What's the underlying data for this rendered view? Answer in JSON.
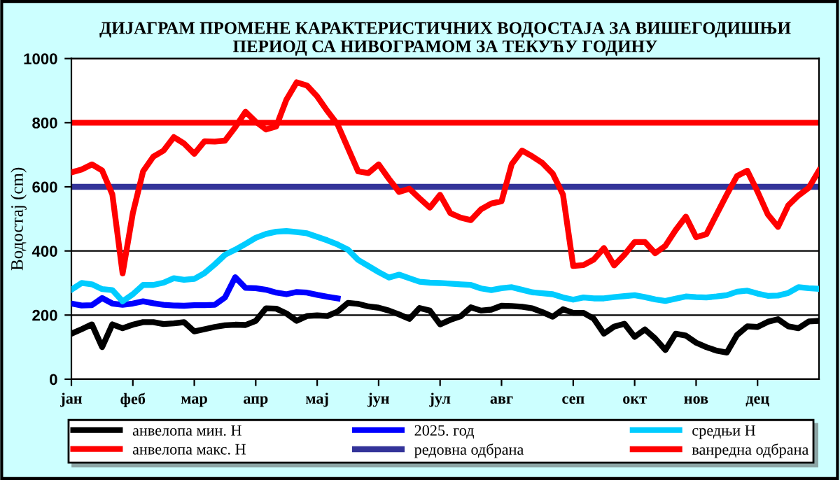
{
  "chart_data": {
    "type": "line",
    "title": "ДИЈАГРАМ ПРОМЕНЕ КАРАКТЕРИСТИЧНИХ ВОДОСТАЈА ЗА ВИШЕГОДИШЊИ\nПЕРИОД СА НИВОГРАМОМ ЗА ТЕКУЋУ ГОДИНУ",
    "ylabel": "Водостај (cm)",
    "categories": [
      "јан",
      null,
      null,
      null,
      null,
      null,
      "феб",
      null,
      null,
      null,
      null,
      null,
      "мар",
      null,
      null,
      null,
      null,
      null,
      "апр",
      null,
      null,
      null,
      null,
      null,
      "мај",
      null,
      null,
      null,
      null,
      null,
      "јун",
      null,
      null,
      null,
      null,
      null,
      "јул",
      null,
      null,
      null,
      null,
      null,
      "авг",
      null,
      null,
      null,
      null,
      null,
      null,
      "сеп",
      null,
      null,
      null,
      null,
      null,
      "окт",
      null,
      null,
      null,
      null,
      null,
      "нов",
      null,
      null,
      null,
      null,
      null,
      "дец",
      null,
      null,
      null,
      null,
      null,
      null
    ],
    "ylim": [
      0,
      1000
    ],
    "yticks": [
      0,
      200,
      400,
      600,
      800,
      1000
    ],
    "grid": "y",
    "legend": "bottom",
    "marker": "none",
    "line_style": "solid",
    "series": [
      {
        "name": "анвелопа мин. Н",
        "color": "#000000",
        "values": [
          142,
          156,
          171,
          100,
          171,
          159,
          170,
          178,
          178,
          172,
          174,
          178,
          149,
          156,
          163,
          168,
          170,
          169,
          182,
          221,
          220,
          205,
          182,
          197,
          199,
          197,
          211,
          238,
          235,
          227,
          223,
          214,
          202,
          188,
          222,
          214,
          171,
          185,
          196,
          224,
          214,
          217,
          229,
          228,
          226,
          221,
          209,
          195,
          218,
          207,
          207,
          189,
          142,
          164,
          173,
          132,
          155,
          127,
          91,
          142,
          136,
          114,
          100,
          89,
          83,
          138,
          165,
          163,
          179,
          187,
          165,
          159,
          180,
          182
        ]
      },
      {
        "name": "2025. год",
        "color": "#0000ff",
        "values": [
          236,
          230,
          231,
          253,
          236,
          232,
          236,
          243,
          237,
          232,
          230,
          229,
          231,
          231,
          232,
          255,
          318,
          285,
          284,
          279,
          270,
          265,
          272,
          270,
          263,
          257,
          252,
          null,
          null,
          null,
          null,
          null,
          null,
          null,
          null,
          null,
          null,
          null,
          null,
          null,
          null,
          null,
          null,
          null,
          null,
          null,
          null,
          null,
          null,
          null,
          null,
          null,
          null,
          null,
          null,
          null,
          null,
          null,
          null,
          null,
          null,
          null,
          null,
          null,
          null,
          null,
          null,
          null,
          null,
          null,
          null,
          null,
          null,
          null
        ]
      },
      {
        "name": "средњи Н",
        "color": "#00ccff",
        "values": [
          279,
          300,
          296,
          281,
          278,
          243,
          265,
          294,
          294,
          301,
          315,
          310,
          313,
          331,
          358,
          388,
          404,
          422,
          441,
          453,
          460,
          462,
          459,
          455,
          444,
          433,
          420,
          404,
          372,
          353,
          334,
          317,
          326,
          315,
          304,
          301,
          300,
          298,
          296,
          294,
          283,
          278,
          284,
          287,
          279,
          271,
          268,
          265,
          255,
          248,
          255,
          252,
          252,
          256,
          259,
          262,
          256,
          249,
          244,
          251,
          258,
          256,
          255,
          258,
          262,
          273,
          276,
          267,
          260,
          261,
          269,
          287,
          284,
          282
        ]
      },
      {
        "name": "анвелопа макс. Н",
        "color": "#ff0000",
        "values": [
          645,
          654,
          670,
          651,
          576,
          330,
          518,
          648,
          694,
          713,
          755,
          735,
          703,
          742,
          741,
          744,
          786,
          834,
          803,
          779,
          788,
          872,
          926,
          916,
          882,
          836,
          794,
          721,
          648,
          643,
          670,
          625,
          584,
          594,
          564,
          535,
          575,
          518,
          504,
          496,
          530,
          548,
          555,
          671,
          713,
          695,
          674,
          641,
          576,
          353,
          356,
          373,
          409,
          355,
          388,
          428,
          428,
          393,
          416,
          465,
          507,
          443,
          452,
          514,
          576,
          634,
          650,
          585,
          514,
          475,
          542,
          573,
          597,
          651
        ]
      }
    ],
    "ref_lines": [
      {
        "axis": "y",
        "value": 600,
        "label": "редовна одбрана",
        "color": "#333399"
      },
      {
        "axis": "y",
        "value": 800,
        "label": "ванредна одбрана",
        "color": "#ff0000"
      }
    ]
  }
}
